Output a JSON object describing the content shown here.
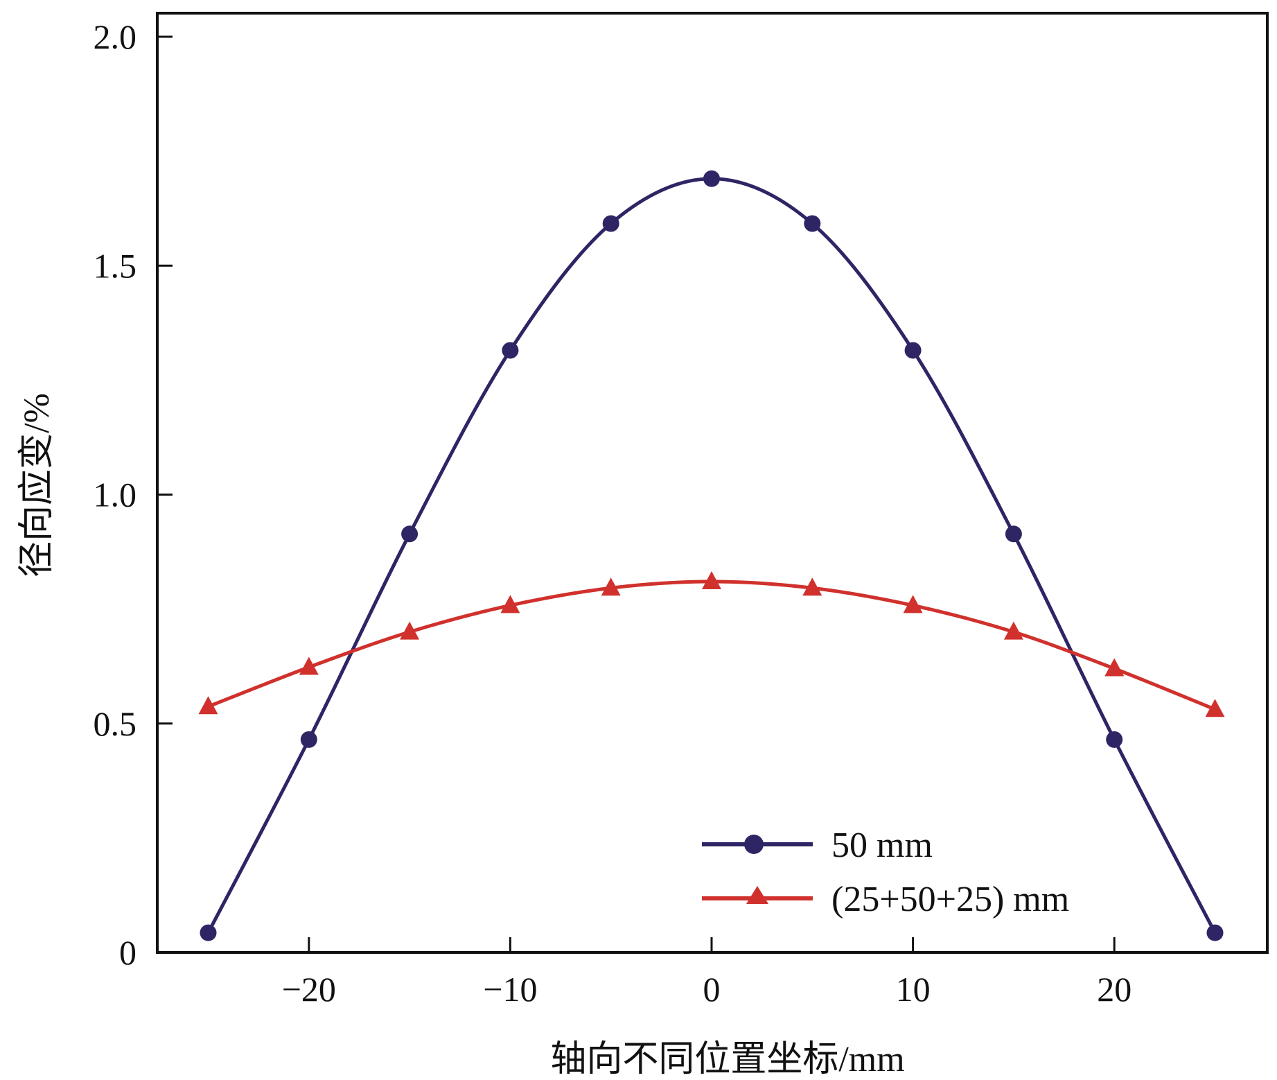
{
  "chart_data": {
    "type": "line",
    "title": "",
    "xlabel": "轴向不同位置坐标/mm",
    "ylabel": "径向应变/%",
    "xlim": [
      -27,
      27.5
    ],
    "ylim": [
      0,
      2.05
    ],
    "xticks": [
      -20,
      -10,
      0,
      10,
      20
    ],
    "xtick_labels": [
      "−20",
      "−10",
      "0",
      "10",
      "20"
    ],
    "yticks": [
      0,
      0.5,
      1.0,
      1.5,
      2.0
    ],
    "ytick_labels": [
      "0",
      "0.5",
      "1.0",
      "1.5",
      "2.0"
    ],
    "grid": false,
    "legend_position": "bottom-right",
    "x": [
      -25,
      -20,
      -15,
      -10,
      -5,
      0,
      5,
      10,
      15,
      20,
      25
    ],
    "series": [
      {
        "name": "50 mm",
        "color": "#2e2565",
        "marker": "circle",
        "values": [
          0.043,
          0.465,
          0.914,
          1.315,
          1.592,
          1.69,
          1.592,
          1.315,
          0.914,
          0.465,
          0.043
        ]
      },
      {
        "name": "(25+50+25) mm",
        "color": "#d0312d",
        "marker": "triangle",
        "values": [
          0.537,
          0.623,
          0.7,
          0.758,
          0.796,
          0.81,
          0.796,
          0.758,
          0.7,
          0.62,
          0.531
        ]
      }
    ]
  }
}
